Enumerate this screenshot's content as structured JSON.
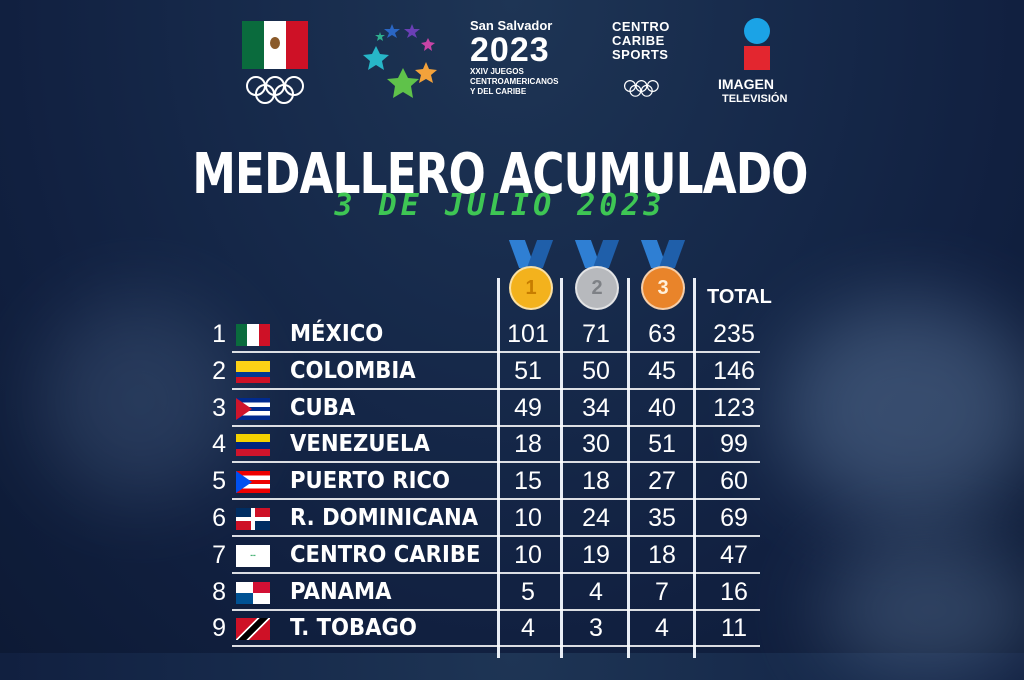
{
  "header": {
    "san_salvador": "San Salvador",
    "year": "2023",
    "games_line1": "XXIV JUEGOS",
    "games_line2": "CENTROAMERICANOS",
    "games_line3": "Y DEL CARIBE",
    "centro_caribe_line1": "CENTRO",
    "centro_caribe_line2": "CARIBE",
    "centro_caribe_line3": "SPORTS",
    "imagen": "IMAGEN",
    "television": "TELEVISIÓN"
  },
  "title": "MEDALLERO ACUMULADO",
  "subtitle": "3 DE JULIO 2023",
  "medals": {
    "gold": "1",
    "silver": "2",
    "bronze": "3"
  },
  "total_label": "TOTAL",
  "colors": {
    "accent_green": "#3ec654",
    "gold": "#f3b21d",
    "silver": "#b7b9bd",
    "bronze": "#e9842a"
  },
  "rows": [
    {
      "rank": "1",
      "country": "MÉXICO",
      "flag": "mexico-flag",
      "gold": "101",
      "silver": "71",
      "bronze": "63",
      "total": "235"
    },
    {
      "rank": "2",
      "country": "COLOMBIA",
      "flag": "colombia-flag",
      "gold": "51",
      "silver": "50",
      "bronze": "45",
      "total": "146"
    },
    {
      "rank": "3",
      "country": "CUBA",
      "flag": "cuba-flag",
      "gold": "49",
      "silver": "34",
      "bronze": "40",
      "total": "123"
    },
    {
      "rank": "4",
      "country": "VENEZUELA",
      "flag": "venezuela-flag",
      "gold": "18",
      "silver": "30",
      "bronze": "51",
      "total": "99"
    },
    {
      "rank": "5",
      "country": "PUERTO RICO",
      "flag": "puerto-rico-flag",
      "gold": "15",
      "silver": "18",
      "bronze": "27",
      "total": "60"
    },
    {
      "rank": "6",
      "country": "R. DOMINICANA",
      "flag": "dominican-republic-flag",
      "gold": "10",
      "silver": "24",
      "bronze": "35",
      "total": "69"
    },
    {
      "rank": "7",
      "country": "CENTRO CARIBE",
      "flag": "centro-caribe-flag",
      "gold": "10",
      "silver": "19",
      "bronze": "18",
      "total": "47"
    },
    {
      "rank": "8",
      "country": "PANAMA",
      "flag": "panama-flag",
      "gold": "5",
      "silver": "4",
      "bronze": "7",
      "total": "16"
    },
    {
      "rank": "9",
      "country": "T. TOBAGO",
      "flag": "trinidad-tobago-flag",
      "gold": "4",
      "silver": "3",
      "bronze": "4",
      "total": "11"
    }
  ]
}
